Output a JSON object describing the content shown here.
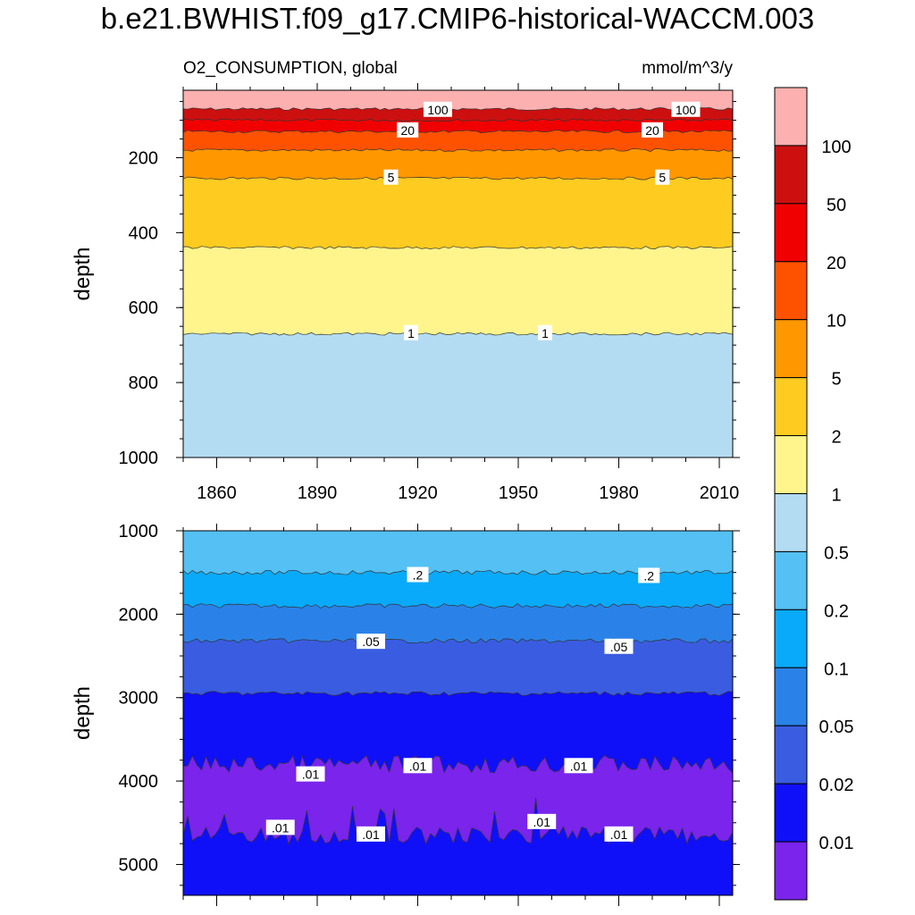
{
  "title": "b.e21.BWHIST.f09_g17.CMIP6-historical-WACCM.003",
  "chart_data": {
    "type": "contour",
    "variable_label": "O2_CONSUMPTION, global",
    "units_label": "mmol/m^3/y",
    "xlabel": "",
    "ylabel": "depth",
    "xlim": [
      1850,
      2014
    ],
    "x_ticks": [
      "1860",
      "1890",
      "1920",
      "1950",
      "1980",
      "2010"
    ],
    "panels": [
      {
        "name": "upper",
        "ylim": [
          1000,
          20
        ],
        "y_ticks": [
          "200",
          "400",
          "600",
          "800",
          "1000"
        ],
        "bands": [
          {
            "from": 0,
            "to": 70,
            "color": "#fcb0b0"
          },
          {
            "from": 70,
            "to": 100,
            "color": "#cc1010"
          },
          {
            "from": 100,
            "to": 130,
            "color": "#f00000"
          },
          {
            "from": 130,
            "to": 180,
            "color": "#fe5200"
          },
          {
            "from": 180,
            "to": 255,
            "color": "#fe9700"
          },
          {
            "from": 255,
            "to": 440,
            "color": "#fecb20"
          },
          {
            "from": 440,
            "to": 670,
            "color": "#fff58c"
          },
          {
            "from": 670,
            "to": 1000,
            "color": "#b3dcf3"
          }
        ],
        "contour_labels": [
          {
            "text": "100",
            "x": 1926,
            "y": 72
          },
          {
            "text": "100",
            "x": 2000,
            "y": 72
          },
          {
            "text": "20",
            "x": 1917,
            "y": 127
          },
          {
            "text": "20",
            "x": 1990,
            "y": 127
          },
          {
            "text": "5",
            "x": 1912,
            "y": 253
          },
          {
            "text": "5",
            "x": 1993,
            "y": 253
          },
          {
            "text": "1",
            "x": 1918,
            "y": 668
          },
          {
            "text": "1",
            "x": 1958,
            "y": 668
          }
        ]
      },
      {
        "name": "lower",
        "ylim": [
          5370,
          1000
        ],
        "y_ticks": [
          "1000",
          "2000",
          "3000",
          "4000",
          "5000"
        ],
        "bands": [
          {
            "from": 1000,
            "to": 1500,
            "color": "#54c0f3"
          },
          {
            "from": 1500,
            "to": 1900,
            "color": "#0aaafa"
          },
          {
            "from": 1900,
            "to": 2320,
            "color": "#2a82e8"
          },
          {
            "from": 2320,
            "to": 2950,
            "color": "#3a5ce0"
          },
          {
            "from": 2950,
            "to": 3800,
            "color": "#1010f8"
          },
          {
            "from": 3800,
            "to": 4650,
            "color": "#7a24ec"
          },
          {
            "from": 4650,
            "to": 5370,
            "color": "#1010f8"
          }
        ],
        "contour_labels": [
          {
            "text": ".2",
            "x": 1920,
            "y": 1530
          },
          {
            "text": ".2",
            "x": 1989,
            "y": 1540
          },
          {
            "text": ".05",
            "x": 1906,
            "y": 2330
          },
          {
            "text": ".05",
            "x": 1980,
            "y": 2390
          },
          {
            "text": ".01",
            "x": 1888,
            "y": 3920
          },
          {
            "text": ".01",
            "x": 1920,
            "y": 3820
          },
          {
            "text": ".01",
            "x": 1968,
            "y": 3820
          },
          {
            "text": ".01",
            "x": 1879,
            "y": 4560
          },
          {
            "text": ".01",
            "x": 1906,
            "y": 4640
          },
          {
            "text": ".01",
            "x": 1957,
            "y": 4490
          },
          {
            "text": ".01",
            "x": 1980,
            "y": 4640
          }
        ]
      }
    ],
    "colorbar": {
      "colors": [
        "#fcb0b0",
        "#cc1010",
        "#f00000",
        "#fe5200",
        "#fe9700",
        "#fecb20",
        "#fff58c",
        "#b3dcf3",
        "#54c0f3",
        "#0aaafa",
        "#2a82e8",
        "#3a5ce0",
        "#1010f8",
        "#7a24ec"
      ],
      "labels": [
        "100",
        "50",
        "20",
        "10",
        "5",
        "2",
        "1",
        "0.5",
        "0.2",
        "0.1",
        "0.05",
        "0.02",
        "0.01"
      ]
    }
  }
}
